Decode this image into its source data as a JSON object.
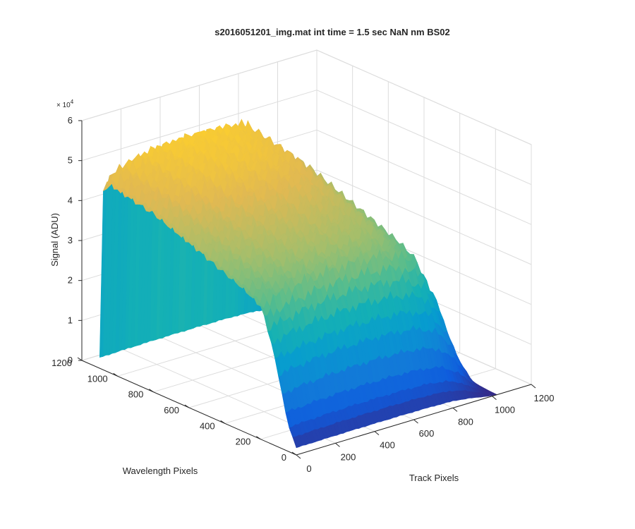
{
  "chart_data": {
    "type": "surface3d",
    "title": "s2016051201_img.mat int time = 1.5 sec  NaN nm BS02",
    "xlabel": "Track Pixels",
    "ylabel": "Wavelength Pixels",
    "zlabel": "Signal (ADU)",
    "z_exponent_label": "× 10",
    "z_exponent_power": "4",
    "xlim": [
      0,
      1200
    ],
    "ylim": [
      0,
      1200
    ],
    "zlim": [
      0,
      60000
    ],
    "x_ticks": [
      0,
      200,
      400,
      600,
      800,
      1000,
      1200
    ],
    "y_ticks": [
      0,
      200,
      400,
      600,
      800,
      1000,
      1200
    ],
    "z_ticks": [
      0,
      10000,
      20000,
      30000,
      40000,
      50000,
      60000
    ],
    "x_tick_labels": [
      "0",
      "200",
      "400",
      "600",
      "800",
      "1000",
      "1200"
    ],
    "y_tick_labels": [
      "0",
      "200",
      "400",
      "600",
      "800",
      "1000",
      "1200"
    ],
    "z_tick_labels": [
      "0",
      "1",
      "2",
      "3",
      "4",
      "5",
      "6"
    ],
    "x_data_range": [
      0,
      1024
    ],
    "y_data_range": [
      0,
      1100
    ],
    "peak_signal": 53000,
    "profile_along_wavelength": [
      [
        0,
        2000
      ],
      [
        50,
        8000
      ],
      [
        100,
        20000
      ],
      [
        150,
        30000
      ],
      [
        200,
        37000
      ],
      [
        300,
        40000
      ],
      [
        400,
        42000
      ],
      [
        500,
        44000
      ],
      [
        600,
        46000
      ],
      [
        700,
        48000
      ],
      [
        800,
        50000
      ],
      [
        900,
        51000
      ],
      [
        1000,
        52000
      ],
      [
        1060,
        53000
      ],
      [
        1090,
        49000
      ],
      [
        1100,
        3000
      ]
    ],
    "profile_along_track": [
      [
        0,
        0.9
      ],
      [
        100,
        0.94
      ],
      [
        200,
        0.97
      ],
      [
        300,
        0.99
      ],
      [
        400,
        1.0
      ],
      [
        500,
        1.0
      ],
      [
        600,
        0.99
      ],
      [
        700,
        0.96
      ],
      [
        800,
        0.86
      ],
      [
        880,
        0.62
      ],
      [
        940,
        0.32
      ],
      [
        990,
        0.1
      ],
      [
        1024,
        0.02
      ]
    ],
    "grid": true,
    "colormap": "parula",
    "view": "3d"
  }
}
